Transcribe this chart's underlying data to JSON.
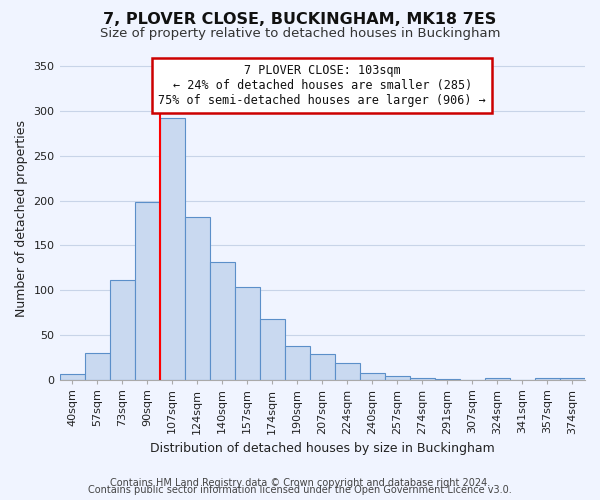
{
  "title": "7, PLOVER CLOSE, BUCKINGHAM, MK18 7ES",
  "subtitle": "Size of property relative to detached houses in Buckingham",
  "xlabel": "Distribution of detached houses by size in Buckingham",
  "ylabel": "Number of detached properties",
  "categories": [
    "40sqm",
    "57sqm",
    "73sqm",
    "90sqm",
    "107sqm",
    "124sqm",
    "140sqm",
    "157sqm",
    "174sqm",
    "190sqm",
    "207sqm",
    "224sqm",
    "240sqm",
    "257sqm",
    "274sqm",
    "291sqm",
    "307sqm",
    "324sqm",
    "341sqm",
    "357sqm",
    "374sqm"
  ],
  "values": [
    6,
    30,
    111,
    199,
    292,
    182,
    131,
    103,
    68,
    37,
    29,
    19,
    7,
    4,
    2,
    1,
    0,
    2,
    0,
    2,
    2
  ],
  "bar_color": "#c9d9f0",
  "bar_edge_color": "#5b8fc9",
  "red_line_index": 4,
  "ylim": [
    0,
    360
  ],
  "yticks": [
    0,
    50,
    100,
    150,
    200,
    250,
    300,
    350
  ],
  "annotation_title": "7 PLOVER CLOSE: 103sqm",
  "annotation_line1": "← 24% of detached houses are smaller (285)",
  "annotation_line2": "75% of semi-detached houses are larger (906) →",
  "annotation_box_color": "#ffffff",
  "annotation_box_edge": "#cc0000",
  "footer1": "Contains HM Land Registry data © Crown copyright and database right 2024.",
  "footer2": "Contains public sector information licensed under the Open Government Licence v3.0.",
  "background_color": "#f0f4ff",
  "grid_color": "#c8d4e8",
  "title_fontsize": 11.5,
  "subtitle_fontsize": 9.5,
  "axis_label_fontsize": 9,
  "tick_fontsize": 8,
  "annotation_fontsize": 8.5,
  "footer_fontsize": 7
}
